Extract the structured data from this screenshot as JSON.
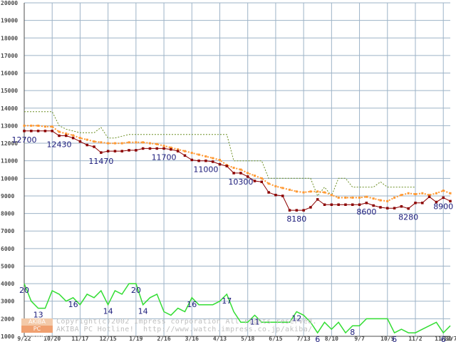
{
  "chart_data": {
    "type": "line",
    "ylim": [
      1000,
      20000
    ],
    "yticks": [
      1000,
      2000,
      3000,
      4000,
      5000,
      6000,
      7000,
      8000,
      9000,
      10000,
      11000,
      12000,
      13000,
      14000,
      15000,
      16000,
      17000,
      18000,
      19000,
      20000
    ],
    "grid": true,
    "xtick_labels": [
      "9/22",
      "10/20",
      "11/17",
      "12/15",
      "1/19",
      "2/16",
      "3/16",
      "4/13",
      "5/18",
      "6/15",
      "7/13",
      "8/10",
      "9/7",
      "10/5",
      "11/2",
      "11/30",
      "12/7"
    ],
    "colors": {
      "grid": "#9db3c7",
      "axis": "#4f4f4f",
      "tick_label": "#4b4b4b",
      "annotation": "#1a1a7a",
      "max": "#6b8e23",
      "avg": "#ff9933",
      "min": "#8b0000",
      "shops": "#33dd33",
      "watermark": "#c0c0c0"
    },
    "series_price": [
      {
        "id": "max",
        "style": "dotted",
        "points": [
          [
            0,
            13800
          ],
          [
            1,
            13800
          ],
          [
            2,
            13800
          ],
          [
            3,
            13800
          ],
          [
            4,
            13800
          ],
          [
            5,
            13000
          ],
          [
            6,
            12800
          ],
          [
            7,
            12700
          ],
          [
            8,
            12600
          ],
          [
            9,
            12600
          ],
          [
            10,
            12600
          ],
          [
            11,
            12900
          ],
          [
            12,
            12300
          ],
          [
            13,
            12300
          ],
          [
            14,
            12400
          ],
          [
            15,
            12500
          ],
          [
            16,
            12500
          ],
          [
            17,
            12500
          ],
          [
            18,
            12500
          ],
          [
            19,
            12500
          ],
          [
            20,
            12500
          ],
          [
            21,
            12500
          ],
          [
            22,
            12500
          ],
          [
            23,
            12500
          ],
          [
            24,
            12500
          ],
          [
            25,
            12500
          ],
          [
            26,
            12500
          ],
          [
            27,
            12500
          ],
          [
            28,
            12500
          ],
          [
            29,
            12500
          ],
          [
            30,
            11000
          ],
          [
            31,
            11000
          ],
          [
            32,
            11000
          ],
          [
            33,
            11000
          ],
          [
            34,
            11000
          ],
          [
            35,
            10000
          ],
          [
            36,
            10000
          ],
          [
            37,
            10000
          ],
          [
            38,
            10000
          ],
          [
            39,
            10000
          ],
          [
            40,
            10000
          ],
          [
            41,
            10000
          ],
          [
            42,
            9000
          ],
          [
            43,
            9500
          ],
          [
            44,
            9000
          ],
          [
            45,
            10000
          ],
          [
            46,
            10000
          ],
          [
            47,
            9500
          ],
          [
            48,
            9500
          ],
          [
            49,
            9500
          ],
          [
            50,
            9500
          ],
          [
            51,
            9800
          ],
          [
            52,
            9500
          ],
          [
            53,
            9500
          ],
          [
            54,
            9500
          ],
          [
            55,
            9500
          ],
          [
            56,
            9500
          ]
        ]
      },
      {
        "id": "avg",
        "style": "dotted-markers",
        "points": [
          [
            0,
            13000
          ],
          [
            1,
            13000
          ],
          [
            2,
            13000
          ],
          [
            3,
            12950
          ],
          [
            4,
            12950
          ],
          [
            5,
            12650
          ],
          [
            6,
            12550
          ],
          [
            7,
            12450
          ],
          [
            8,
            12300
          ],
          [
            9,
            12200
          ],
          [
            10,
            12100
          ],
          [
            11,
            12050
          ],
          [
            12,
            12000
          ],
          [
            13,
            12000
          ],
          [
            14,
            12000
          ],
          [
            15,
            12050
          ],
          [
            16,
            12050
          ],
          [
            17,
            12050
          ],
          [
            18,
            12000
          ],
          [
            19,
            11950
          ],
          [
            20,
            11850
          ],
          [
            21,
            11750
          ],
          [
            22,
            11650
          ],
          [
            23,
            11550
          ],
          [
            24,
            11450
          ],
          [
            25,
            11350
          ],
          [
            26,
            11250
          ],
          [
            27,
            11150
          ],
          [
            28,
            11050
          ],
          [
            29,
            10750
          ],
          [
            30,
            10600
          ],
          [
            31,
            10500
          ],
          [
            32,
            10300
          ],
          [
            33,
            10150
          ],
          [
            34,
            10000
          ],
          [
            35,
            9700
          ],
          [
            36,
            9550
          ],
          [
            37,
            9450
          ],
          [
            38,
            9350
          ],
          [
            39,
            9250
          ],
          [
            40,
            9200
          ],
          [
            41,
            9250
          ],
          [
            42,
            9250
          ],
          [
            43,
            9200
          ],
          [
            44,
            9050
          ],
          [
            45,
            8900
          ],
          [
            46,
            8900
          ],
          [
            47,
            8900
          ],
          [
            48,
            8900
          ],
          [
            49,
            8950
          ],
          [
            50,
            8850
          ],
          [
            51,
            8750
          ],
          [
            52,
            8700
          ],
          [
            53,
            8900
          ],
          [
            54,
            9050
          ],
          [
            55,
            9150
          ],
          [
            56,
            9100
          ],
          [
            57,
            9150
          ],
          [
            58,
            9050
          ],
          [
            59,
            9150
          ],
          [
            60,
            9300
          ],
          [
            61,
            9150
          ]
        ]
      },
      {
        "id": "min",
        "style": "solid-markers",
        "points": [
          [
            0,
            12700
          ],
          [
            1,
            12700
          ],
          [
            2,
            12700
          ],
          [
            3,
            12700
          ],
          [
            4,
            12700
          ],
          [
            5,
            12430
          ],
          [
            6,
            12430
          ],
          [
            7,
            12300
          ],
          [
            8,
            12100
          ],
          [
            9,
            11900
          ],
          [
            10,
            11800
          ],
          [
            11,
            11470
          ],
          [
            12,
            11550
          ],
          [
            13,
            11550
          ],
          [
            14,
            11550
          ],
          [
            15,
            11600
          ],
          [
            16,
            11600
          ],
          [
            17,
            11700
          ],
          [
            18,
            11700
          ],
          [
            19,
            11700
          ],
          [
            20,
            11700
          ],
          [
            21,
            11650
          ],
          [
            22,
            11550
          ],
          [
            23,
            11300
          ],
          [
            24,
            11050
          ],
          [
            25,
            11000
          ],
          [
            26,
            11000
          ],
          [
            27,
            10950
          ],
          [
            28,
            10800
          ],
          [
            29,
            10700
          ],
          [
            30,
            10300
          ],
          [
            31,
            10300
          ],
          [
            32,
            10100
          ],
          [
            33,
            9850
          ],
          [
            34,
            9800
          ],
          [
            35,
            9200
          ],
          [
            36,
            9050
          ],
          [
            37,
            9000
          ],
          [
            38,
            8180
          ],
          [
            39,
            8180
          ],
          [
            40,
            8180
          ],
          [
            41,
            8350
          ],
          [
            42,
            8800
          ],
          [
            43,
            8500
          ],
          [
            44,
            8500
          ],
          [
            45,
            8500
          ],
          [
            46,
            8500
          ],
          [
            47,
            8500
          ],
          [
            48,
            8500
          ],
          [
            49,
            8600
          ],
          [
            50,
            8450
          ],
          [
            51,
            8350
          ],
          [
            52,
            8300
          ],
          [
            53,
            8300
          ],
          [
            54,
            8400
          ],
          [
            55,
            8280
          ],
          [
            56,
            8600
          ],
          [
            57,
            8600
          ],
          [
            58,
            8950
          ],
          [
            59,
            8650
          ],
          [
            60,
            8900
          ],
          [
            61,
            8700
          ]
        ]
      }
    ],
    "series_shops": {
      "id": "shops",
      "style": "solid",
      "values_are_counts": true,
      "points": [
        [
          0,
          20
        ],
        [
          1,
          15
        ],
        [
          2,
          13
        ],
        [
          3,
          13
        ],
        [
          4,
          18
        ],
        [
          5,
          17
        ],
        [
          6,
          15
        ],
        [
          7,
          16
        ],
        [
          8,
          14
        ],
        [
          9,
          17
        ],
        [
          10,
          16
        ],
        [
          11,
          18
        ],
        [
          12,
          14
        ],
        [
          13,
          18
        ],
        [
          14,
          17
        ],
        [
          15,
          20
        ],
        [
          16,
          20
        ],
        [
          17,
          14
        ],
        [
          18,
          16
        ],
        [
          19,
          17
        ],
        [
          20,
          12
        ],
        [
          21,
          11
        ],
        [
          22,
          13
        ],
        [
          23,
          12
        ],
        [
          24,
          16
        ],
        [
          25,
          14
        ],
        [
          26,
          14
        ],
        [
          27,
          14
        ],
        [
          28,
          15
        ],
        [
          29,
          17
        ],
        [
          30,
          12
        ],
        [
          31,
          9
        ],
        [
          32,
          9
        ],
        [
          33,
          11
        ],
        [
          34,
          9
        ],
        [
          35,
          9
        ],
        [
          36,
          9
        ],
        [
          37,
          9
        ],
        [
          38,
          9
        ],
        [
          39,
          12
        ],
        [
          40,
          11
        ],
        [
          41,
          9
        ],
        [
          42,
          6
        ],
        [
          43,
          9
        ],
        [
          44,
          7
        ],
        [
          45,
          9
        ],
        [
          46,
          6
        ],
        [
          47,
          8
        ],
        [
          48,
          8
        ],
        [
          49,
          10
        ],
        [
          50,
          10
        ],
        [
          51,
          10
        ],
        [
          52,
          10
        ],
        [
          53,
          6
        ],
        [
          54,
          7
        ],
        [
          55,
          6
        ],
        [
          56,
          6
        ],
        [
          57,
          7
        ],
        [
          58,
          8
        ],
        [
          59,
          9
        ],
        [
          60,
          6
        ],
        [
          61,
          8
        ]
      ]
    },
    "annotations": [
      {
        "text": "12700",
        "x": 0,
        "y": 12700
      },
      {
        "text": "12430",
        "x": 5,
        "y": 12430
      },
      {
        "text": "11470",
        "x": 11,
        "y": 11470
      },
      {
        "text": "11700",
        "x": 20,
        "y": 11700
      },
      {
        "text": "11000",
        "x": 26,
        "y": 11000
      },
      {
        "text": "10300",
        "x": 31,
        "y": 10300
      },
      {
        "text": "8180",
        "x": 39,
        "y": 8180
      },
      {
        "text": "8600",
        "x": 49,
        "y": 8600
      },
      {
        "text": "8280",
        "x": 55,
        "y": 8280
      },
      {
        "text": "8900",
        "x": 60,
        "y": 8900
      },
      {
        "text": "20",
        "x": 0,
        "y": 20,
        "series": "shops"
      },
      {
        "text": "13",
        "x": 2,
        "y": 13,
        "series": "shops"
      },
      {
        "text": "16",
        "x": 7,
        "y": 16,
        "series": "shops"
      },
      {
        "text": "14",
        "x": 12,
        "y": 14,
        "series": "shops"
      },
      {
        "text": "20",
        "x": 16,
        "y": 20,
        "series": "shops"
      },
      {
        "text": "14",
        "x": 17,
        "y": 14,
        "series": "shops"
      },
      {
        "text": "16",
        "x": 24,
        "y": 16,
        "series": "shops"
      },
      {
        "text": "17",
        "x": 29,
        "y": 17,
        "series": "shops"
      },
      {
        "text": "11",
        "x": 33,
        "y": 11,
        "series": "shops"
      },
      {
        "text": "12",
        "x": 39,
        "y": 12,
        "series": "shops"
      },
      {
        "text": "6",
        "x": 42,
        "y": 6,
        "series": "shops"
      },
      {
        "text": "8",
        "x": 47,
        "y": 8,
        "series": "shops"
      },
      {
        "text": "6",
        "x": 53,
        "y": 6,
        "series": "shops"
      },
      {
        "text": "6",
        "x": 60,
        "y": 6,
        "series": "shops"
      }
    ]
  },
  "watermark": {
    "badge_top": "AKIBA",
    "badge_bottom": "PC Hotline!",
    "line1": "Copyright(c)2002 Impress corporation All rights reserved.",
    "line2": "AKIBA PC Hotline!  http://www.watch.impress.co.jp/akiba/"
  }
}
